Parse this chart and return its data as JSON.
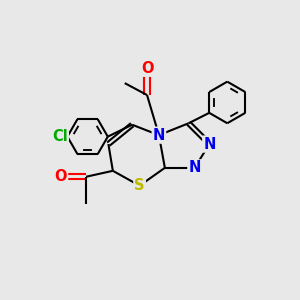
{
  "bg_color": "#e8e8e8",
  "atom_colors": {
    "N": "#0000ee",
    "O": "#ff0000",
    "S": "#bbbb00",
    "Cl": "#00aa00",
    "C": "#000000"
  },
  "bond_color": "#000000",
  "bond_lw": 1.5,
  "figsize": [
    3.0,
    3.0
  ],
  "dpi": 100
}
